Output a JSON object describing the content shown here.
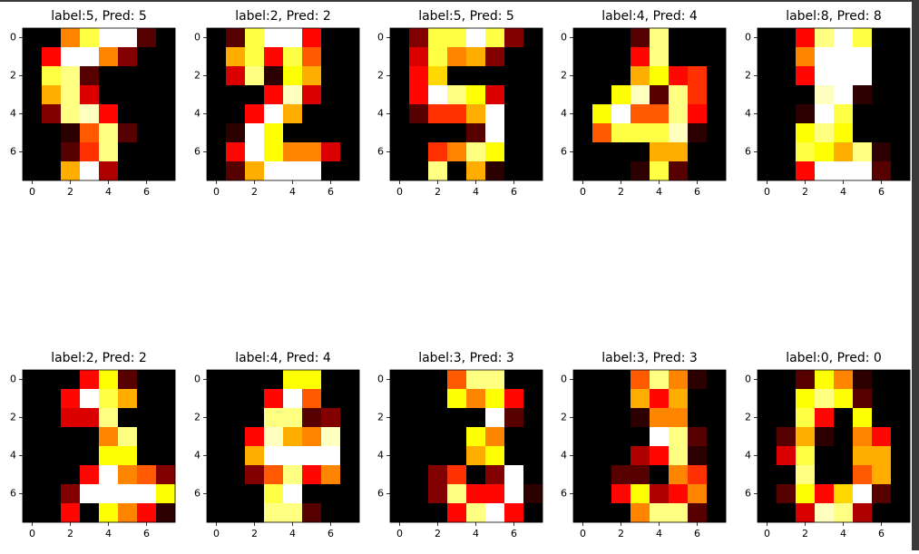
{
  "chart_data": [
    {
      "type": "heatmap",
      "title": "label:5, Pred: 5",
      "colormap": "hot",
      "xlim": [
        -0.5,
        7.5
      ],
      "ylim": [
        7.5,
        -0.5
      ],
      "xticks": [
        0,
        2,
        4,
        6
      ],
      "yticks": [
        0,
        2,
        4,
        6
      ],
      "values": [
        [
          0,
          0,
          9,
          13,
          16,
          16,
          2,
          0
        ],
        [
          0,
          6,
          16,
          16,
          9,
          3,
          0,
          0
        ],
        [
          0,
          13,
          14,
          2,
          0,
          0,
          0,
          0
        ],
        [
          0,
          10,
          14,
          5,
          0,
          0,
          0,
          0
        ],
        [
          0,
          3,
          14,
          15,
          6,
          0,
          0,
          0
        ],
        [
          0,
          0,
          1,
          8,
          14,
          2,
          0,
          0
        ],
        [
          0,
          0,
          2,
          7,
          14,
          0,
          0,
          0
        ],
        [
          0,
          0,
          10,
          16,
          4,
          0,
          0,
          0
        ]
      ]
    },
    {
      "type": "heatmap",
      "title": "label:2, Pred: 2",
      "colormap": "hot",
      "xlim": [
        -0.5,
        7.5
      ],
      "ylim": [
        7.5,
        -0.5
      ],
      "xticks": [
        0,
        2,
        4,
        6
      ],
      "yticks": [
        0,
        2,
        4,
        6
      ],
      "values": [
        [
          0,
          2,
          13,
          16,
          16,
          6,
          0,
          0
        ],
        [
          0,
          10,
          13,
          6,
          13,
          8,
          0,
          0
        ],
        [
          0,
          5,
          14,
          1,
          12,
          10,
          0,
          0
        ],
        [
          0,
          0,
          0,
          6,
          15,
          5,
          0,
          0
        ],
        [
          0,
          0,
          6,
          16,
          10,
          0,
          0,
          0
        ],
        [
          0,
          1,
          16,
          12,
          0,
          0,
          0,
          0
        ],
        [
          0,
          6,
          16,
          12,
          9,
          9,
          5,
          0
        ],
        [
          0,
          2,
          10,
          16,
          16,
          16,
          0,
          0
        ]
      ]
    },
    {
      "type": "heatmap",
      "title": "label:5, Pred: 5",
      "colormap": "hot",
      "xlim": [
        -0.5,
        7.5
      ],
      "ylim": [
        7.5,
        -0.5
      ],
      "xticks": [
        0,
        2,
        4,
        6
      ],
      "yticks": [
        0,
        2,
        4,
        6
      ],
      "values": [
        [
          0,
          3,
          13,
          13,
          16,
          13,
          3,
          0
        ],
        [
          0,
          5,
          13,
          9,
          10,
          3,
          0,
          0
        ],
        [
          0,
          6,
          11,
          0,
          0,
          0,
          0,
          0
        ],
        [
          0,
          6,
          16,
          14,
          12,
          5,
          0,
          0
        ],
        [
          0,
          2,
          7,
          7,
          10,
          16,
          0,
          0
        ],
        [
          0,
          0,
          0,
          0,
          2,
          16,
          0,
          0
        ],
        [
          0,
          0,
          7,
          9,
          14,
          12,
          0,
          0
        ],
        [
          0,
          0,
          14,
          0,
          10,
          1,
          0,
          0
        ]
      ]
    },
    {
      "type": "heatmap",
      "title": "label:4, Pred: 4",
      "colormap": "hot",
      "xlim": [
        -0.5,
        7.5
      ],
      "ylim": [
        7.5,
        -0.5
      ],
      "xticks": [
        0,
        2,
        4,
        6
      ],
      "yticks": [
        0,
        2,
        4,
        6
      ],
      "values": [
        [
          0,
          0,
          0,
          2,
          14,
          0,
          0,
          0
        ],
        [
          0,
          0,
          0,
          6,
          14,
          0,
          0,
          0
        ],
        [
          0,
          0,
          0,
          10,
          12,
          6,
          7,
          0
        ],
        [
          0,
          0,
          12,
          15,
          2,
          14,
          7,
          0
        ],
        [
          0,
          12,
          16,
          8,
          8,
          14,
          6,
          0
        ],
        [
          0,
          8,
          13,
          13,
          13,
          15,
          1,
          0
        ],
        [
          0,
          0,
          0,
          0,
          10,
          10,
          0,
          0
        ],
        [
          0,
          0,
          0,
          1,
          13,
          2,
          0,
          0
        ]
      ]
    },
    {
      "type": "heatmap",
      "title": "label:8, Pred: 8",
      "colormap": "hot",
      "xlim": [
        -0.5,
        7.5
      ],
      "ylim": [
        7.5,
        -0.5
      ],
      "xticks": [
        0,
        2,
        4,
        6
      ],
      "yticks": [
        0,
        2,
        4,
        6
      ],
      "values": [
        [
          0,
          0,
          6,
          14,
          16,
          13,
          0,
          0
        ],
        [
          0,
          0,
          9,
          16,
          16,
          16,
          0,
          0
        ],
        [
          0,
          0,
          6,
          16,
          16,
          16,
          0,
          0
        ],
        [
          0,
          0,
          0,
          15,
          16,
          1,
          0,
          0
        ],
        [
          0,
          0,
          1,
          16,
          13,
          0,
          0,
          0
        ],
        [
          0,
          0,
          12,
          14,
          12,
          0,
          0,
          0
        ],
        [
          0,
          0,
          13,
          12,
          10,
          14,
          1,
          0
        ],
        [
          0,
          0,
          6,
          16,
          16,
          16,
          2,
          0
        ]
      ]
    },
    {
      "type": "heatmap",
      "title": "label:2, Pred: 2",
      "colormap": "hot",
      "xlim": [
        -0.5,
        7.5
      ],
      "ylim": [
        7.5,
        -0.5
      ],
      "xticks": [
        0,
        2,
        4,
        6
      ],
      "yticks": [
        0,
        2,
        4,
        6
      ],
      "values": [
        [
          0,
          0,
          0,
          6,
          12,
          2,
          0,
          0
        ],
        [
          0,
          0,
          6,
          16,
          13,
          10,
          0,
          0
        ],
        [
          0,
          0,
          5,
          5,
          14,
          0,
          0,
          0
        ],
        [
          0,
          0,
          0,
          0,
          9,
          14,
          0,
          0
        ],
        [
          0,
          0,
          0,
          0,
          12,
          12,
          0,
          0
        ],
        [
          0,
          0,
          0,
          6,
          16,
          9,
          8,
          3
        ],
        [
          0,
          0,
          3,
          16,
          16,
          16,
          16,
          12
        ],
        [
          0,
          0,
          6,
          0,
          12,
          9,
          6,
          1
        ]
      ]
    },
    {
      "type": "heatmap",
      "title": "label:4, Pred: 4",
      "colormap": "hot",
      "xlim": [
        -0.5,
        7.5
      ],
      "ylim": [
        7.5,
        -0.5
      ],
      "xticks": [
        0,
        2,
        4,
        6
      ],
      "yticks": [
        0,
        2,
        4,
        6
      ],
      "values": [
        [
          0,
          0,
          0,
          0,
          12,
          12,
          0,
          0
        ],
        [
          0,
          0,
          0,
          6,
          16,
          8,
          0,
          0
        ],
        [
          0,
          0,
          0,
          14,
          14,
          2,
          3,
          0
        ],
        [
          0,
          0,
          6,
          15,
          10,
          9,
          15,
          0
        ],
        [
          0,
          0,
          10,
          16,
          16,
          16,
          16,
          0
        ],
        [
          0,
          0,
          3,
          8,
          14,
          6,
          9,
          0
        ],
        [
          0,
          0,
          0,
          13,
          16,
          0,
          0,
          0
        ],
        [
          0,
          0,
          0,
          14,
          14,
          2,
          0,
          0
        ]
      ]
    },
    {
      "type": "heatmap",
      "title": "label:3, Pred: 3",
      "colormap": "hot",
      "xlim": [
        -0.5,
        7.5
      ],
      "ylim": [
        7.5,
        -0.5
      ],
      "xticks": [
        0,
        2,
        4,
        6
      ],
      "yticks": [
        0,
        2,
        4,
        6
      ],
      "values": [
        [
          0,
          0,
          0,
          8,
          14,
          14,
          0,
          0
        ],
        [
          0,
          0,
          0,
          12,
          9,
          12,
          6,
          0
        ],
        [
          0,
          0,
          0,
          0,
          0,
          16,
          2,
          0
        ],
        [
          0,
          0,
          0,
          0,
          12,
          9,
          0,
          0
        ],
        [
          0,
          0,
          0,
          0,
          10,
          12,
          0,
          0
        ],
        [
          0,
          0,
          3,
          7,
          0,
          3,
          16,
          0
        ],
        [
          0,
          0,
          3,
          14,
          6,
          6,
          16,
          1
        ],
        [
          0,
          0,
          0,
          6,
          14,
          16,
          6,
          0
        ]
      ]
    },
    {
      "type": "heatmap",
      "title": "label:3, Pred: 3",
      "colormap": "hot",
      "xlim": [
        -0.5,
        7.5
      ],
      "ylim": [
        7.5,
        -0.5
      ],
      "xticks": [
        0,
        2,
        4,
        6
      ],
      "yticks": [
        0,
        2,
        4,
        6
      ],
      "values": [
        [
          0,
          0,
          0,
          8,
          14,
          9,
          1,
          0
        ],
        [
          0,
          0,
          0,
          10,
          6,
          10,
          0,
          0
        ],
        [
          0,
          0,
          0,
          1,
          9,
          9,
          0,
          0
        ],
        [
          0,
          0,
          0,
          0,
          16,
          14,
          2,
          0
        ],
        [
          0,
          0,
          0,
          4,
          6,
          14,
          1,
          0
        ],
        [
          0,
          0,
          2,
          2,
          0,
          9,
          7,
          0
        ],
        [
          0,
          0,
          6,
          12,
          4,
          6,
          9,
          0
        ],
        [
          0,
          0,
          0,
          9,
          14,
          14,
          2,
          0
        ]
      ]
    },
    {
      "type": "heatmap",
      "title": "label:0, Pred: 0",
      "colormap": "hot",
      "xlim": [
        -0.5,
        7.5
      ],
      "ylim": [
        7.5,
        -0.5
      ],
      "xticks": [
        0,
        2,
        4,
        6
      ],
      "yticks": [
        0,
        2,
        4,
        6
      ],
      "values": [
        [
          0,
          0,
          2,
          12,
          9,
          1,
          0,
          0
        ],
        [
          0,
          0,
          12,
          14,
          12,
          2,
          0,
          0
        ],
        [
          0,
          0,
          13,
          6,
          0,
          12,
          0,
          0
        ],
        [
          0,
          2,
          10,
          1,
          0,
          9,
          6,
          0
        ],
        [
          0,
          5,
          13,
          0,
          0,
          10,
          10,
          0
        ],
        [
          0,
          0,
          14,
          0,
          0,
          8,
          10,
          0
        ],
        [
          0,
          2,
          12,
          6,
          11,
          16,
          2,
          0
        ],
        [
          0,
          0,
          5,
          15,
          14,
          4,
          0,
          0
        ]
      ]
    }
  ]
}
